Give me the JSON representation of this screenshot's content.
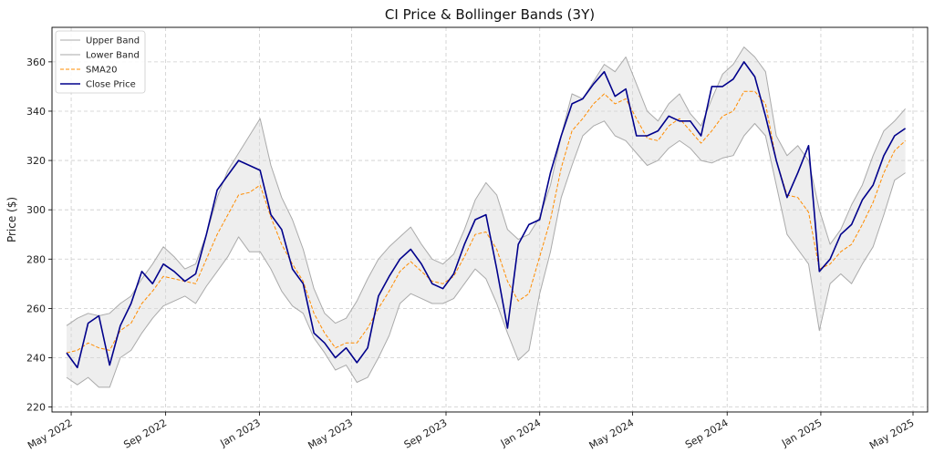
{
  "chart_data": {
    "type": "line",
    "title": "CI Price & Bollinger Bands (3Y)",
    "xlabel": "",
    "ylabel": "Price ($)",
    "ylim": [
      218,
      374
    ],
    "xlim": [
      "2022-04-06",
      "2025-05-20"
    ],
    "grid": true,
    "legend_position": "top-left",
    "y_ticks": [
      220,
      240,
      260,
      280,
      300,
      320,
      340,
      360
    ],
    "x_ticks": [
      {
        "date": "2022-05-01",
        "label": "May 2022"
      },
      {
        "date": "2022-09-01",
        "label": "Sep 2022"
      },
      {
        "date": "2023-01-01",
        "label": "Jan 2023"
      },
      {
        "date": "2023-05-01",
        "label": "May 2023"
      },
      {
        "date": "2023-09-01",
        "label": "Sep 2023"
      },
      {
        "date": "2024-01-01",
        "label": "Jan 2024"
      },
      {
        "date": "2024-05-01",
        "label": "May 2024"
      },
      {
        "date": "2024-09-01",
        "label": "Sep 2024"
      },
      {
        "date": "2025-01-01",
        "label": "Jan 2025"
      },
      {
        "date": "2025-05-01",
        "label": "May 2025"
      }
    ],
    "x": [
      "2022-04-25",
      "2022-05-09",
      "2022-05-23",
      "2022-06-06",
      "2022-06-20",
      "2022-07-04",
      "2022-07-18",
      "2022-08-01",
      "2022-08-15",
      "2022-08-29",
      "2022-09-12",
      "2022-09-26",
      "2022-10-10",
      "2022-10-24",
      "2022-11-07",
      "2022-11-21",
      "2022-12-05",
      "2022-12-19",
      "2023-01-02",
      "2023-01-16",
      "2023-01-30",
      "2023-02-13",
      "2023-02-27",
      "2023-03-13",
      "2023-03-27",
      "2023-04-10",
      "2023-04-24",
      "2023-05-08",
      "2023-05-22",
      "2023-06-05",
      "2023-06-19",
      "2023-07-03",
      "2023-07-17",
      "2023-07-31",
      "2023-08-14",
      "2023-08-28",
      "2023-09-11",
      "2023-09-25",
      "2023-10-09",
      "2023-10-23",
      "2023-11-06",
      "2023-11-20",
      "2023-12-04",
      "2023-12-18",
      "2024-01-01",
      "2024-01-15",
      "2024-01-29",
      "2024-02-12",
      "2024-02-26",
      "2024-03-11",
      "2024-03-25",
      "2024-04-08",
      "2024-04-22",
      "2024-05-06",
      "2024-05-20",
      "2024-06-03",
      "2024-06-17",
      "2024-07-01",
      "2024-07-15",
      "2024-07-29",
      "2024-08-12",
      "2024-08-26",
      "2024-09-09",
      "2024-09-23",
      "2024-10-07",
      "2024-10-21",
      "2024-11-04",
      "2024-11-18",
      "2024-12-02",
      "2024-12-16",
      "2024-12-30",
      "2025-01-13",
      "2025-01-27",
      "2025-02-10",
      "2025-02-24",
      "2025-03-10",
      "2025-03-24",
      "2025-04-07",
      "2025-04-21"
    ],
    "series": [
      {
        "name": "Upper Band",
        "color": "#aaaaaa",
        "style": "solid",
        "values": [
          253,
          256,
          258,
          257,
          258,
          262,
          265,
          272,
          278,
          285,
          281,
          276,
          278,
          290,
          305,
          316,
          323,
          330,
          337,
          318,
          305,
          296,
          284,
          268,
          258,
          254,
          256,
          263,
          272,
          280,
          285,
          289,
          293,
          286,
          280,
          278,
          282,
          292,
          304,
          311,
          306,
          292,
          288,
          290,
          297,
          310,
          330,
          347,
          345,
          352,
          359,
          356,
          362,
          351,
          340,
          336,
          343,
          347,
          339,
          334,
          345,
          355,
          359,
          366,
          362,
          356,
          330,
          322,
          326,
          320,
          300,
          286,
          292,
          302,
          310,
          322,
          332,
          336,
          341
        ]
      },
      {
        "name": "Lower Band",
        "color": "#aaaaaa",
        "style": "solid",
        "values": [
          232,
          229,
          232,
          228,
          228,
          240,
          243,
          250,
          256,
          261,
          263,
          265,
          262,
          269,
          275,
          281,
          289,
          283,
          283,
          276,
          267,
          261,
          258,
          248,
          242,
          235,
          237,
          230,
          232,
          240,
          249,
          262,
          266,
          264,
          262,
          262,
          264,
          270,
          276,
          272,
          262,
          250,
          239,
          243,
          266,
          283,
          305,
          318,
          330,
          334,
          336,
          330,
          328,
          323,
          318,
          320,
          325,
          328,
          325,
          320,
          319,
          321,
          322,
          330,
          335,
          330,
          310,
          290,
          284,
          278,
          251,
          270,
          274,
          270,
          278,
          285,
          298,
          312,
          315
        ]
      },
      {
        "name": "SMA20",
        "color": "#ff8c00",
        "style": "dashed",
        "values": [
          242,
          243,
          246,
          244,
          243,
          251,
          254,
          262,
          267,
          273,
          272,
          271,
          270,
          280,
          290,
          298,
          306,
          307,
          310,
          297,
          286,
          278,
          271,
          258,
          250,
          244,
          246,
          246,
          252,
          260,
          267,
          275,
          279,
          275,
          271,
          270,
          273,
          281,
          290,
          291,
          284,
          271,
          263,
          266,
          281,
          296,
          317,
          332,
          337,
          343,
          347,
          343,
          345,
          337,
          329,
          328,
          334,
          337,
          332,
          327,
          332,
          338,
          340,
          348,
          348,
          343,
          320,
          306,
          305,
          299,
          276,
          278,
          283,
          286,
          294,
          303,
          315,
          324,
          328
        ]
      },
      {
        "name": "Close Price",
        "color": "#00008b",
        "style": "solid",
        "values": [
          242,
          236,
          254,
          257,
          237,
          253,
          262,
          275,
          270,
          278,
          275,
          271,
          274,
          290,
          308,
          314,
          320,
          318,
          316,
          298,
          292,
          276,
          270,
          250,
          246,
          240,
          244,
          238,
          244,
          265,
          273,
          280,
          284,
          278,
          270,
          268,
          274,
          286,
          296,
          298,
          276,
          252,
          286,
          294,
          296,
          315,
          330,
          343,
          345,
          351,
          356,
          346,
          349,
          330,
          330,
          332,
          338,
          336,
          336,
          330,
          350,
          350,
          353,
          360,
          354,
          338,
          320,
          305,
          315,
          326,
          275,
          280,
          290,
          294,
          304,
          310,
          322,
          330,
          333
        ]
      }
    ]
  }
}
